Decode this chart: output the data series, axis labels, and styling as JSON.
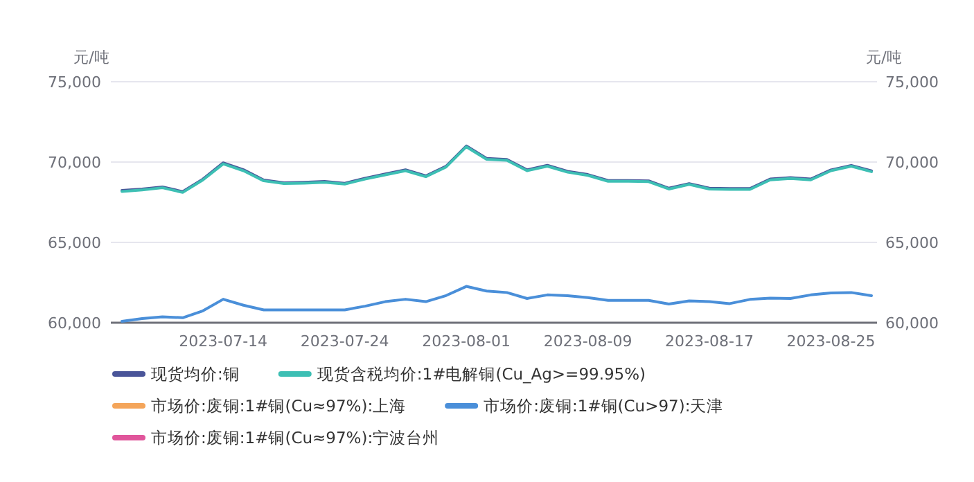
{
  "chart_data": {
    "type": "line",
    "ylabel": "元/吨",
    "y2label": "元/吨",
    "categories": [
      null,
      null,
      null,
      null,
      null,
      "2023-07-14",
      null,
      null,
      null,
      null,
      null,
      "2023-07-24",
      null,
      null,
      null,
      null,
      null,
      "2023-08-01",
      null,
      null,
      null,
      null,
      null,
      "2023-08-09",
      null,
      null,
      null,
      null,
      null,
      "2023-08-17",
      null,
      null,
      null,
      null,
      null,
      "2023-08-25",
      null,
      null
    ],
    "ylim": [
      60000,
      75000
    ],
    "yticks": [
      {
        "value": 60000,
        "label": "60,000"
      },
      {
        "value": 65000,
        "label": "65,000"
      },
      {
        "value": 70000,
        "label": "70,000"
      },
      {
        "value": 75000,
        "label": "75,000"
      }
    ],
    "y2lim": [
      60000,
      75000
    ],
    "y2ticks": [
      {
        "value": 60000,
        "label": "60,000"
      },
      {
        "value": 65000,
        "label": "65,000"
      },
      {
        "value": 70000,
        "label": "70,000"
      },
      {
        "value": 75000,
        "label": "75,000"
      }
    ],
    "grid": "y",
    "legend": "bottom",
    "marker": "none",
    "line_style": "solid",
    "series": [
      {
        "name": "现货均价:铜",
        "color": "#4a5599",
        "values": [
          68230,
          68320,
          68450,
          68160,
          68940,
          69950,
          69520,
          68880,
          68710,
          68740,
          68790,
          68680,
          68990,
          69260,
          69520,
          69140,
          69740,
          71000,
          70230,
          70160,
          69510,
          69800,
          69420,
          69220,
          68850,
          68850,
          68830,
          68370,
          68660,
          68370,
          68350,
          68350,
          68940,
          69030,
          68940,
          69510,
          69790,
          69450
        ]
      },
      {
        "name": "现货含税均价:1#电解铜(Cu_Ag>=99.95%)",
        "color": "#3dbfb4",
        "values": [
          68170,
          68260,
          68400,
          68110,
          68890,
          69890,
          69460,
          68830,
          68660,
          68690,
          68740,
          68630,
          68940,
          69200,
          69460,
          69090,
          69690,
          70950,
          70170,
          70110,
          69460,
          69740,
          69370,
          69170,
          68800,
          68800,
          68780,
          68320,
          68610,
          68320,
          68300,
          68300,
          68890,
          68980,
          68890,
          69460,
          69740,
          69400
        ]
      },
      {
        "name": "市场价:废铜:1#铜(Cu≈97%):上海",
        "color": "#f4a55a",
        "values": [
          null,
          null,
          null,
          null,
          null,
          null,
          null,
          null,
          null,
          null,
          null,
          null,
          null,
          null,
          null,
          null,
          null,
          null,
          null,
          null,
          null,
          null,
          null,
          null,
          null,
          null,
          null,
          null,
          null,
          null,
          null,
          null,
          null,
          null,
          null,
          null,
          null,
          null
        ]
      },
      {
        "name": "市场价:废铜:1#铜(Cu>97):天津",
        "color": "#4a8fd9",
        "values": [
          60090,
          60260,
          60370,
          60310,
          60740,
          61460,
          61090,
          60800,
          60800,
          60800,
          60800,
          60800,
          61030,
          61310,
          61460,
          61310,
          61690,
          62260,
          61970,
          61880,
          61510,
          61730,
          61680,
          61560,
          61390,
          61390,
          61390,
          61160,
          61360,
          61310,
          61190,
          61450,
          61530,
          61510,
          61730,
          61850,
          61880,
          61680
        ]
      },
      {
        "name": "市场价:废铜:1#铜(Cu≈97%):宁波台州",
        "color": "#e0559b",
        "values": [
          null,
          null,
          null,
          null,
          null,
          null,
          null,
          null,
          null,
          null,
          null,
          null,
          null,
          null,
          null,
          null,
          null,
          null,
          null,
          null,
          null,
          null,
          null,
          null,
          null,
          null,
          null,
          null,
          null,
          null,
          null,
          null,
          null,
          null,
          null,
          null,
          null,
          null
        ]
      }
    ]
  }
}
